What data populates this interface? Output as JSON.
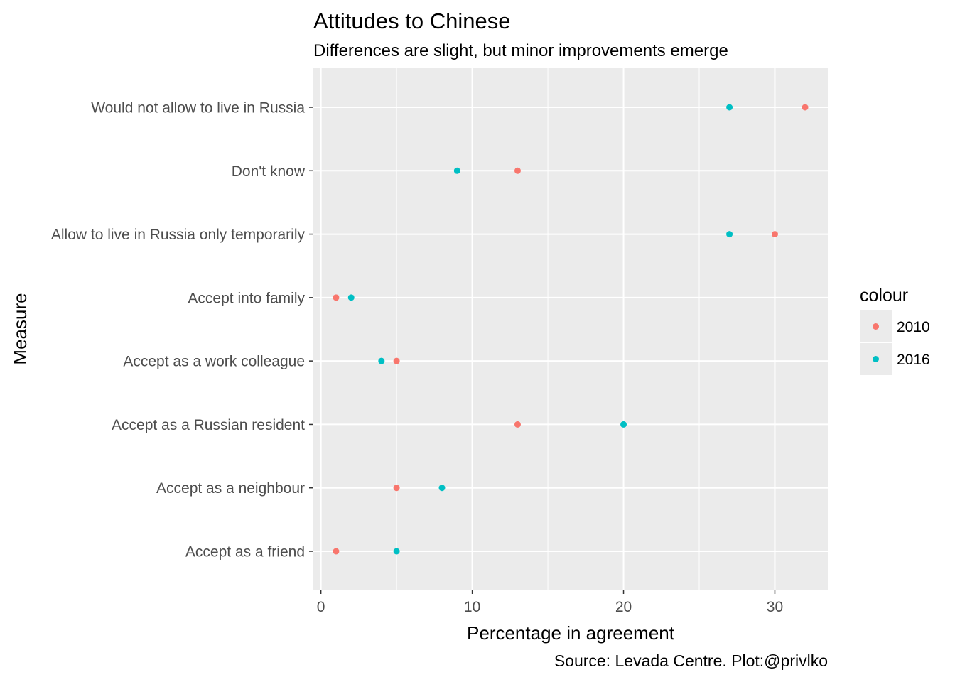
{
  "chart_data": {
    "type": "scatter",
    "title": "Attitudes to Chinese",
    "subtitle": "Differences are slight, but minor improvements emerge",
    "xlabel": "Percentage in agreement",
    "ylabel": "Measure",
    "caption": "Source: Levada Centre. Plot:@privlko",
    "xlim": [
      -0.5,
      33.5
    ],
    "xticks": [
      0,
      10,
      20,
      30
    ],
    "grid": true,
    "legend": {
      "title": "colour",
      "position": "right"
    },
    "categories": [
      "Would not allow to live in Russia",
      "Don't know",
      "Allow to live in Russia only temporarily",
      "Accept into family",
      "Accept as a work colleague",
      "Accept as a Russian resident",
      "Accept as a neighbour",
      "Accept as a friend"
    ],
    "series": [
      {
        "name": "2010",
        "color": "#F8766D",
        "values": [
          32,
          13,
          30,
          1,
          5,
          13,
          5,
          1
        ]
      },
      {
        "name": "2016",
        "color": "#00BFC4",
        "values": [
          27,
          9,
          27,
          2,
          4,
          20,
          8,
          5
        ]
      }
    ]
  }
}
